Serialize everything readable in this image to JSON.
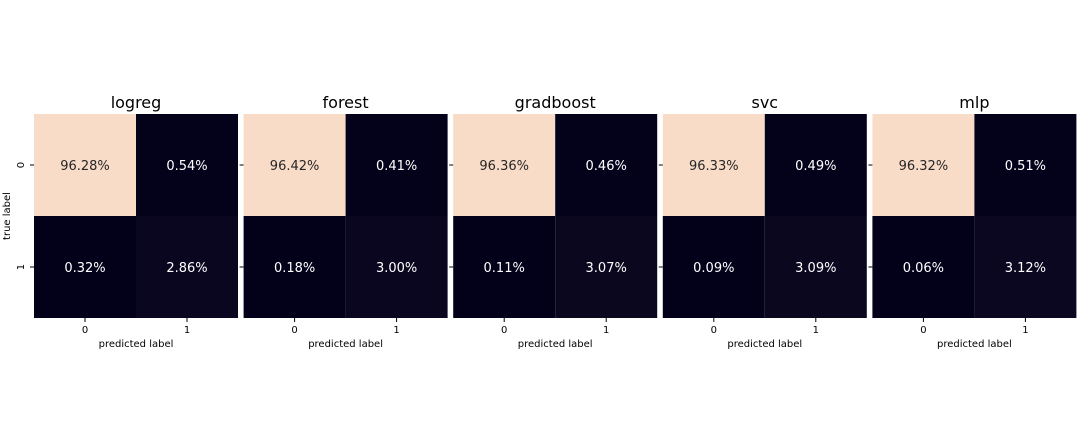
{
  "chart_data": {
    "type": "heatmap",
    "ylabel": "true label",
    "xlabel": "predicted label",
    "row_labels": [
      "0",
      "1"
    ],
    "col_labels": [
      "0",
      "1"
    ],
    "colors": {
      "high": "#f9dcc8",
      "low": "#03001a",
      "text": "#ffffff",
      "text_on_high": "#262626",
      "axis": "#000000"
    },
    "panels": [
      {
        "title": "logreg",
        "matrix": [
          [
            96.28,
            0.54
          ],
          [
            0.32,
            2.86
          ]
        ],
        "labels": [
          [
            "96.28%",
            "0.54%"
          ],
          [
            "0.32%",
            "2.86%"
          ]
        ]
      },
      {
        "title": "forest",
        "matrix": [
          [
            96.42,
            0.41
          ],
          [
            0.18,
            3.0
          ]
        ],
        "labels": [
          [
            "96.42%",
            "0.41%"
          ],
          [
            "0.18%",
            "3.00%"
          ]
        ]
      },
      {
        "title": "gradboost",
        "matrix": [
          [
            96.36,
            0.46
          ],
          [
            0.11,
            3.07
          ]
        ],
        "labels": [
          [
            "96.36%",
            "0.46%"
          ],
          [
            "0.11%",
            "3.07%"
          ]
        ]
      },
      {
        "title": "svc",
        "matrix": [
          [
            96.33,
            0.49
          ],
          [
            0.09,
            3.09
          ]
        ],
        "labels": [
          [
            "96.33%",
            "0.49%"
          ],
          [
            "0.09%",
            "3.09%"
          ]
        ]
      },
      {
        "title": "mlp",
        "matrix": [
          [
            96.32,
            0.51
          ],
          [
            0.06,
            3.12
          ]
        ],
        "labels": [
          [
            "96.32%",
            "0.51%"
          ],
          [
            "0.06%",
            "3.12%"
          ]
        ]
      }
    ]
  }
}
